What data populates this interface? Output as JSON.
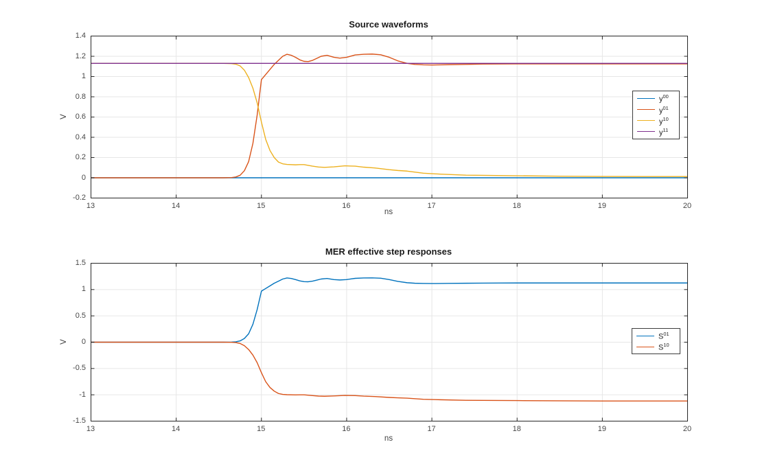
{
  "figure": {
    "background": "#ffffff",
    "grid_color": "#e6e6e6",
    "axes_color": "#262626"
  },
  "chart_data": [
    {
      "type": "line",
      "title": "Source waveforms",
      "xlabel": "ns",
      "ylabel": "V",
      "xlim": [
        13,
        20
      ],
      "ylim": [
        -0.2,
        1.4
      ],
      "xticks": [
        "13",
        "14",
        "15",
        "16",
        "17",
        "18",
        "19",
        "20"
      ],
      "yticks": [
        "-0.2",
        "0",
        "0.2",
        "0.4",
        "0.6",
        "0.8",
        "1",
        "1.2",
        "1.4"
      ],
      "grid": true,
      "legend_position": "right-middle",
      "series": [
        {
          "name": "y00",
          "label_base": "y",
          "label_sup": "00",
          "color": "#0072BD",
          "points": [
            [
              13,
              0
            ],
            [
              14.76,
              0
            ],
            [
              16,
              0
            ],
            [
              18,
              0
            ],
            [
              20,
              0
            ]
          ]
        },
        {
          "name": "y01",
          "label_base": "y",
          "label_sup": "01",
          "color": "#D95319",
          "points": [
            [
              13,
              0
            ],
            [
              14.2,
              0
            ],
            [
              14.55,
              0
            ],
            [
              14.65,
              0.002
            ],
            [
              14.7,
              0.008
            ],
            [
              14.75,
              0.025
            ],
            [
              14.8,
              0.07
            ],
            [
              14.85,
              0.16
            ],
            [
              14.9,
              0.34
            ],
            [
              14.95,
              0.62
            ],
            [
              15.0,
              0.97
            ],
            [
              15.04,
              1.01
            ],
            [
              15.1,
              1.07
            ],
            [
              15.15,
              1.12
            ],
            [
              15.2,
              1.16
            ],
            [
              15.25,
              1.2
            ],
            [
              15.3,
              1.22
            ],
            [
              15.35,
              1.21
            ],
            [
              15.4,
              1.19
            ],
            [
              15.45,
              1.165
            ],
            [
              15.5,
              1.15
            ],
            [
              15.55,
              1.148
            ],
            [
              15.6,
              1.16
            ],
            [
              15.65,
              1.18
            ],
            [
              15.7,
              1.2
            ],
            [
              15.77,
              1.21
            ],
            [
              15.85,
              1.19
            ],
            [
              15.92,
              1.182
            ],
            [
              16.0,
              1.19
            ],
            [
              16.1,
              1.213
            ],
            [
              16.2,
              1.22
            ],
            [
              16.3,
              1.222
            ],
            [
              16.4,
              1.215
            ],
            [
              16.5,
              1.19
            ],
            [
              16.6,
              1.155
            ],
            [
              16.71,
              1.13
            ],
            [
              16.8,
              1.12
            ],
            [
              16.9,
              1.116
            ],
            [
              17.0,
              1.114
            ],
            [
              17.2,
              1.117
            ],
            [
              17.4,
              1.12
            ],
            [
              17.6,
              1.123
            ],
            [
              17.8,
              1.124
            ],
            [
              18.0,
              1.125
            ],
            [
              18.5,
              1.125
            ],
            [
              19.0,
              1.125
            ],
            [
              19.5,
              1.125
            ],
            [
              20,
              1.125
            ]
          ]
        },
        {
          "name": "y10",
          "label_base": "y",
          "label_sup": "10",
          "color": "#EDB120",
          "points": [
            [
              13,
              1.13
            ],
            [
              14.2,
              1.13
            ],
            [
              14.55,
              1.13
            ],
            [
              14.65,
              1.128
            ],
            [
              14.7,
              1.122
            ],
            [
              14.75,
              1.105
            ],
            [
              14.8,
              1.063
            ],
            [
              14.85,
              0.99
            ],
            [
              14.9,
              0.885
            ],
            [
              14.95,
              0.74
            ],
            [
              15.0,
              0.55
            ],
            [
              15.05,
              0.38
            ],
            [
              15.1,
              0.27
            ],
            [
              15.15,
              0.2
            ],
            [
              15.2,
              0.155
            ],
            [
              15.25,
              0.138
            ],
            [
              15.3,
              0.132
            ],
            [
              15.4,
              0.128
            ],
            [
              15.45,
              0.13
            ],
            [
              15.5,
              0.13
            ],
            [
              15.6,
              0.115
            ],
            [
              15.67,
              0.106
            ],
            [
              15.74,
              0.103
            ],
            [
              15.85,
              0.108
            ],
            [
              15.98,
              0.118
            ],
            [
              16.1,
              0.115
            ],
            [
              16.2,
              0.105
            ],
            [
              16.33,
              0.097
            ],
            [
              16.5,
              0.08
            ],
            [
              16.6,
              0.072
            ],
            [
              16.71,
              0.066
            ],
            [
              16.9,
              0.045
            ],
            [
              17.1,
              0.036
            ],
            [
              17.4,
              0.026
            ],
            [
              17.6,
              0.024
            ],
            [
              18.0,
              0.02
            ],
            [
              18.5,
              0.016
            ],
            [
              19.0,
              0.013
            ],
            [
              19.5,
              0.012
            ],
            [
              20,
              0.012
            ]
          ]
        },
        {
          "name": "y11",
          "label_base": "y",
          "label_sup": "11",
          "color": "#7E2F8E",
          "points": [
            [
              13,
              1.13
            ],
            [
              15,
              1.13
            ],
            [
              17,
              1.13
            ],
            [
              20,
              1.13
            ]
          ]
        }
      ]
    },
    {
      "type": "line",
      "title": "MER effective step responses",
      "xlabel": "ns",
      "ylabel": "V",
      "xlim": [
        13,
        20
      ],
      "ylim": [
        -1.5,
        1.5
      ],
      "xticks": [
        "13",
        "14",
        "15",
        "16",
        "17",
        "18",
        "19",
        "20"
      ],
      "yticks": [
        "-1.5",
        "-1",
        "-0.5",
        "0",
        "0.5",
        "1",
        "1.5"
      ],
      "grid": true,
      "legend_position": "right-middle",
      "series": [
        {
          "name": "S01",
          "label_base": "S",
          "label_sup": "01",
          "color": "#0072BD",
          "points": [
            [
              13,
              0
            ],
            [
              14.2,
              0
            ],
            [
              14.55,
              0
            ],
            [
              14.65,
              0.002
            ],
            [
              14.7,
              0.008
            ],
            [
              14.75,
              0.025
            ],
            [
              14.8,
              0.07
            ],
            [
              14.85,
              0.16
            ],
            [
              14.9,
              0.34
            ],
            [
              14.95,
              0.62
            ],
            [
              15.0,
              0.97
            ],
            [
              15.04,
              1.01
            ],
            [
              15.1,
              1.07
            ],
            [
              15.15,
              1.12
            ],
            [
              15.2,
              1.16
            ],
            [
              15.25,
              1.2
            ],
            [
              15.3,
              1.22
            ],
            [
              15.35,
              1.21
            ],
            [
              15.4,
              1.19
            ],
            [
              15.45,
              1.165
            ],
            [
              15.5,
              1.15
            ],
            [
              15.55,
              1.148
            ],
            [
              15.6,
              1.16
            ],
            [
              15.65,
              1.18
            ],
            [
              15.7,
              1.2
            ],
            [
              15.77,
              1.21
            ],
            [
              15.85,
              1.19
            ],
            [
              15.92,
              1.182
            ],
            [
              16.0,
              1.19
            ],
            [
              16.1,
              1.213
            ],
            [
              16.2,
              1.22
            ],
            [
              16.3,
              1.222
            ],
            [
              16.4,
              1.215
            ],
            [
              16.5,
              1.19
            ],
            [
              16.6,
              1.155
            ],
            [
              16.71,
              1.13
            ],
            [
              16.8,
              1.12
            ],
            [
              16.9,
              1.116
            ],
            [
              17.0,
              1.114
            ],
            [
              17.2,
              1.117
            ],
            [
              17.4,
              1.12
            ],
            [
              17.6,
              1.123
            ],
            [
              17.8,
              1.124
            ],
            [
              18.0,
              1.125
            ],
            [
              18.5,
              1.125
            ],
            [
              19.0,
              1.125
            ],
            [
              19.5,
              1.125
            ],
            [
              20,
              1.125
            ]
          ]
        },
        {
          "name": "S10",
          "label_base": "S",
          "label_sup": "10",
          "color": "#D95319",
          "points": [
            [
              13,
              0
            ],
            [
              14.2,
              0
            ],
            [
              14.55,
              0
            ],
            [
              14.65,
              -0.002
            ],
            [
              14.7,
              -0.008
            ],
            [
              14.75,
              -0.025
            ],
            [
              14.8,
              -0.067
            ],
            [
              14.85,
              -0.14
            ],
            [
              14.9,
              -0.245
            ],
            [
              14.95,
              -0.39
            ],
            [
              15.0,
              -0.58
            ],
            [
              15.05,
              -0.75
            ],
            [
              15.1,
              -0.86
            ],
            [
              15.15,
              -0.93
            ],
            [
              15.2,
              -0.975
            ],
            [
              15.25,
              -0.992
            ],
            [
              15.3,
              -0.998
            ],
            [
              15.4,
              -1.002
            ],
            [
              15.45,
              -1.0
            ],
            [
              15.5,
              -1.0
            ],
            [
              15.6,
              -1.015
            ],
            [
              15.67,
              -1.024
            ],
            [
              15.74,
              -1.027
            ],
            [
              15.85,
              -1.022
            ],
            [
              15.98,
              -1.012
            ],
            [
              16.1,
              -1.015
            ],
            [
              16.2,
              -1.025
            ],
            [
              16.33,
              -1.033
            ],
            [
              16.5,
              -1.05
            ],
            [
              16.6,
              -1.058
            ],
            [
              16.71,
              -1.064
            ],
            [
              16.9,
              -1.085
            ],
            [
              17.1,
              -1.094
            ],
            [
              17.4,
              -1.104
            ],
            [
              17.6,
              -1.106
            ],
            [
              18.0,
              -1.11
            ],
            [
              18.5,
              -1.114
            ],
            [
              19.0,
              -1.117
            ],
            [
              19.5,
              -1.118
            ],
            [
              20,
              -1.118
            ]
          ]
        }
      ]
    }
  ]
}
